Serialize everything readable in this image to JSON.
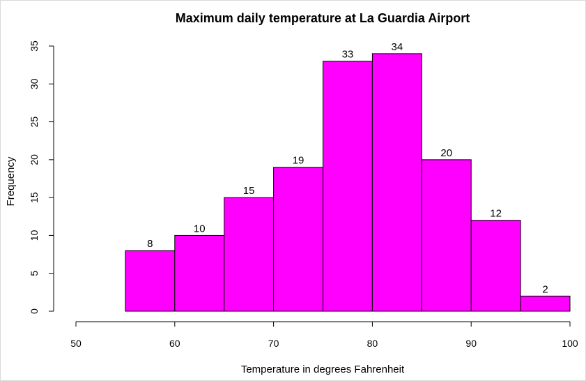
{
  "chart_data": {
    "type": "bar",
    "title": "Maximum daily temperature at La Guardia Airport",
    "xlabel": "Temperature in degrees Fahrenheit",
    "ylabel": "Frequency",
    "bins": [
      {
        "start": 55,
        "end": 60,
        "count": 8
      },
      {
        "start": 60,
        "end": 65,
        "count": 10
      },
      {
        "start": 65,
        "end": 70,
        "count": 15
      },
      {
        "start": 70,
        "end": 75,
        "count": 19
      },
      {
        "start": 75,
        "end": 80,
        "count": 33
      },
      {
        "start": 80,
        "end": 85,
        "count": 34
      },
      {
        "start": 85,
        "end": 90,
        "count": 20
      },
      {
        "start": 90,
        "end": 95,
        "count": 12
      },
      {
        "start": 95,
        "end": 100,
        "count": 2
      }
    ],
    "xlim": [
      50,
      100
    ],
    "ylim": [
      0,
      35
    ],
    "xticks": [
      "50",
      "60",
      "70",
      "80",
      "90",
      "100"
    ],
    "yticks": [
      "0",
      "5",
      "10",
      "15",
      "20",
      "25",
      "30",
      "35"
    ],
    "bar_color": "#ff00ff",
    "grid": false,
    "legend": "none"
  }
}
